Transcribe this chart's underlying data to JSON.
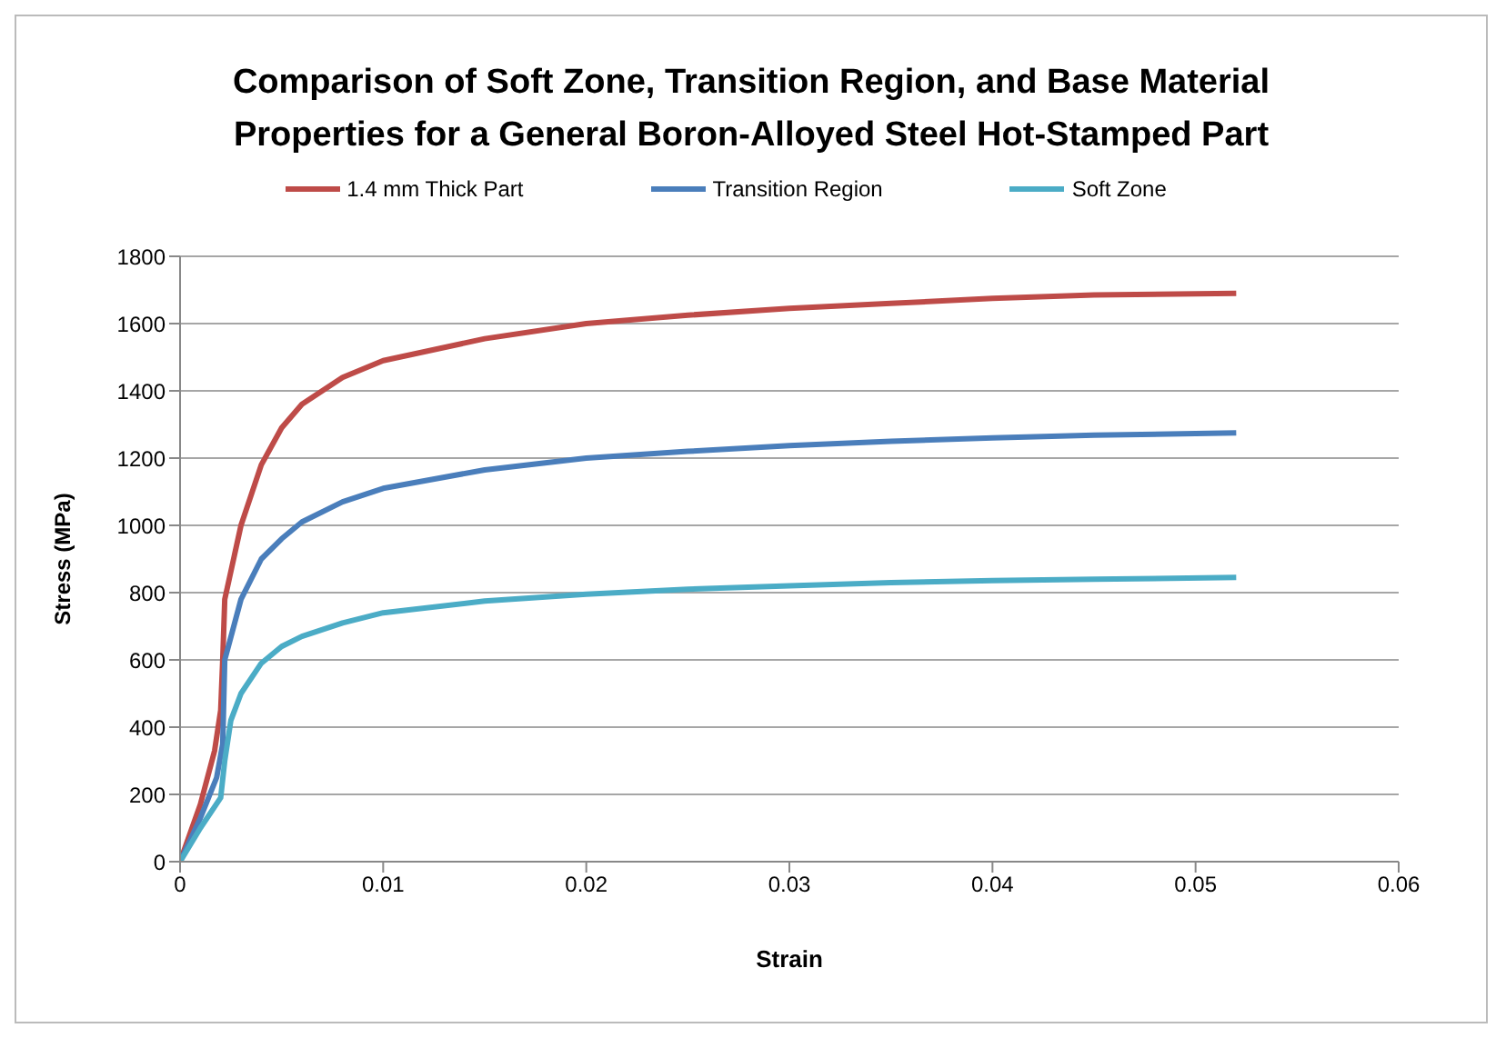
{
  "chart_data": {
    "type": "line",
    "title": "Comparison of Soft Zone, Transition Region, and Base Material Properties for a General Boron-Alloyed Steel Hot-Stamped Part",
    "xlabel": "Strain",
    "ylabel": "Stress (MPa)",
    "xlim": [
      0,
      0.06
    ],
    "xticks": [
      0,
      0.01,
      0.02,
      0.03,
      0.04,
      0.05,
      0.06
    ],
    "ylim": [
      0,
      1800
    ],
    "yticks": [
      0,
      200,
      400,
      600,
      800,
      1000,
      1200,
      1400,
      1600,
      1800
    ],
    "grid": "y",
    "legend": "top",
    "marker": "none",
    "line_style": "solid",
    "series": [
      {
        "name": "1.4 mm Thick Part",
        "color": "#be4b48",
        "x": [
          0,
          0.001,
          0.0017,
          0.002,
          0.0021,
          0.0022,
          0.003,
          0.004,
          0.005,
          0.006,
          0.008,
          0.01,
          0.015,
          0.02,
          0.025,
          0.03,
          0.035,
          0.04,
          0.045,
          0.052
        ],
        "values": [
          0,
          170,
          330,
          450,
          600,
          780,
          1000,
          1180,
          1290,
          1360,
          1440,
          1490,
          1555,
          1600,
          1625,
          1645,
          1660,
          1675,
          1685,
          1690
        ]
      },
      {
        "name": "Transition Region",
        "color": "#4a7ebb",
        "x": [
          0,
          0.001,
          0.0018,
          0.0021,
          0.0022,
          0.003,
          0.004,
          0.005,
          0.006,
          0.008,
          0.01,
          0.015,
          0.02,
          0.025,
          0.03,
          0.035,
          0.04,
          0.045,
          0.052
        ],
        "values": [
          0,
          130,
          250,
          350,
          600,
          780,
          900,
          960,
          1010,
          1070,
          1110,
          1165,
          1200,
          1220,
          1237,
          1250,
          1260,
          1268,
          1275
        ]
      },
      {
        "name": "Soft Zone",
        "color": "#4bacc6",
        "x": [
          0,
          0.001,
          0.002,
          0.0022,
          0.0025,
          0.003,
          0.004,
          0.005,
          0.006,
          0.008,
          0.01,
          0.015,
          0.02,
          0.025,
          0.03,
          0.035,
          0.04,
          0.045,
          0.052
        ],
        "values": [
          0,
          100,
          190,
          300,
          420,
          500,
          590,
          640,
          670,
          710,
          740,
          775,
          795,
          810,
          820,
          830,
          836,
          840,
          845
        ]
      }
    ]
  }
}
